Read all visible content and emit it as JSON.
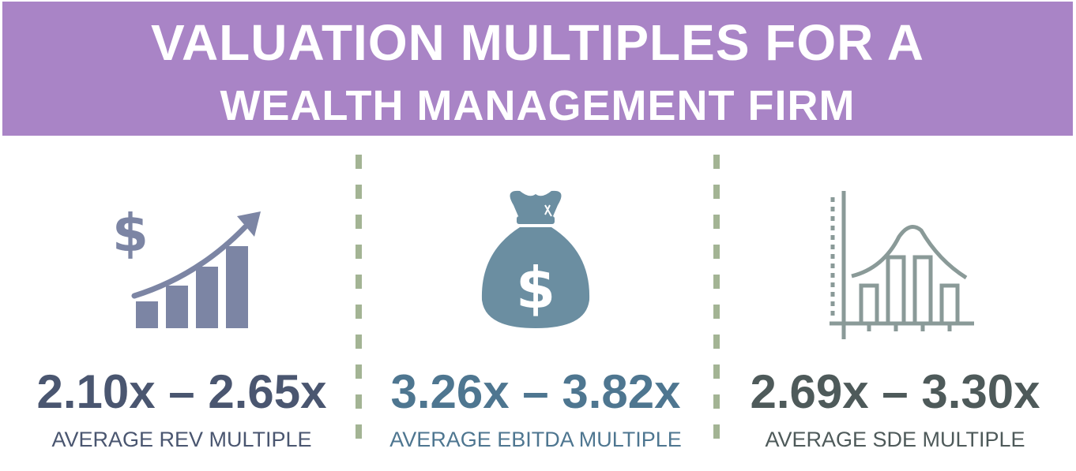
{
  "banner": {
    "line1": "VALUATION MULTIPLES FOR A",
    "line2": "WEALTH MANAGEMENT FIRM",
    "background": "#a984c6"
  },
  "columns": [
    {
      "icon": "rising-revenue-chart-icon",
      "value": "2.10x – 2.65x",
      "label": "AVERAGE REV MULTIPLE",
      "color": "#4a5670"
    },
    {
      "icon": "money-bag-icon",
      "value": "3.26x – 3.82x",
      "label": "AVERAGE EBITDA MULTIPLE",
      "color": "#4e7690"
    },
    {
      "icon": "distribution-histogram-icon",
      "value": "2.69x – 3.30x",
      "label": "AVERAGE SDE MULTIPLE",
      "color": "#4e5a5a"
    }
  ],
  "divider_color": "#a3b494"
}
